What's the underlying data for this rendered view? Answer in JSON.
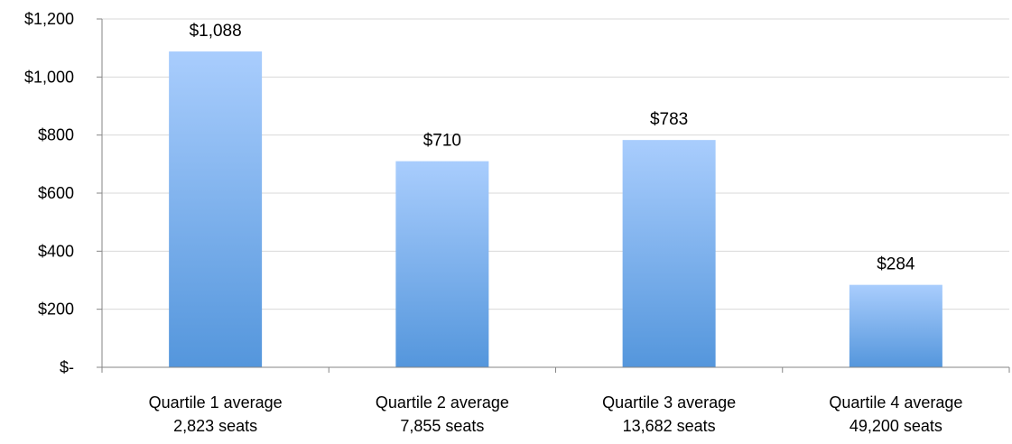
{
  "chart_data": {
    "type": "bar",
    "title": "",
    "xlabel": "",
    "ylabel": "",
    "categories": [
      [
        "Quartile 1 average",
        "2,823 seats"
      ],
      [
        "Quartile 2 average",
        "7,855 seats"
      ],
      [
        "Quartile 3 average",
        "13,682 seats"
      ],
      [
        "Quartile 4 average",
        "49,200 seats"
      ]
    ],
    "values": [
      1088,
      710,
      783,
      284
    ],
    "data_labels": [
      "$1,088",
      "$710",
      "$783",
      "$284"
    ],
    "ylim": [
      0,
      1200
    ],
    "yticks": [
      0,
      200,
      400,
      600,
      800,
      1000,
      1200
    ],
    "ytick_labels": [
      "$-",
      "$200",
      "$400",
      "$600",
      "$800",
      "$1,000",
      "$1,200"
    ],
    "grid": true,
    "legend": "none",
    "colors": {
      "bar_top": "#a9cdfd",
      "bar_bottom": "#5496dc",
      "grid": "#d9d9d9",
      "axis": "#868686"
    }
  }
}
